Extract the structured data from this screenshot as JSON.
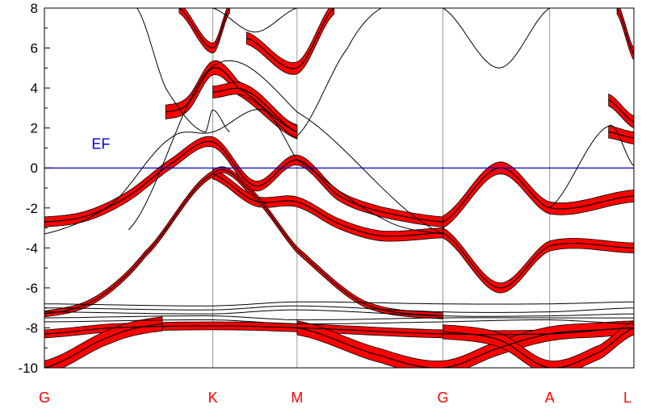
{
  "chart_data": {
    "type": "line",
    "title": "",
    "xlabel": "",
    "ylabel": "",
    "ylim": [
      -10,
      8
    ],
    "yticks": [
      8,
      6,
      4,
      2,
      0,
      -2,
      -4,
      -6,
      -8,
      -10
    ],
    "grid": "vertical lines at high-symmetry points",
    "legend": "none",
    "x_high_symmetry": [
      {
        "label": "G",
        "x": 0.0
      },
      {
        "label": "K",
        "x": 1.0
      },
      {
        "label": "M",
        "x": 1.5
      },
      {
        "label": "G",
        "x": 2.366
      },
      {
        "label": "A",
        "x": 3.0
      },
      {
        "label": "L",
        "x": 3.5
      }
    ],
    "fermi_level": {
      "label": "EF",
      "value": 0,
      "label_x": 0.28,
      "label_y": 1.2
    },
    "colors": {
      "band": "#000000",
      "fat_band": "#ff0000",
      "fermi": "#0000cc",
      "grid": "#999999"
    },
    "series": [
      {
        "fat": 0.25,
        "x": [
          0,
          0.25,
          0.5,
          0.75,
          1.0,
          1.25,
          1.5,
          1.75,
          2.0,
          2.366
        ],
        "y": [
          -2.7,
          -2.4,
          -1.4,
          0.2,
          1.3,
          -0.9,
          0.4,
          -1.4,
          -2.2,
          -2.7
        ]
      },
      {
        "fat": 0.25,
        "x": [
          1.0,
          1.25,
          1.5,
          1.75,
          2.0,
          2.366
        ],
        "y": [
          -0.3,
          -1.65,
          -1.7,
          -2.8,
          -3.4,
          -3.25
        ]
      },
      {
        "fat": 0.15,
        "x": [
          0,
          0.3,
          0.6,
          1.0,
          1.2,
          1.5,
          1.9,
          2.366
        ],
        "y": [
          -7.3,
          -6.6,
          -4.3,
          -0.3,
          -1.0,
          -4.1,
          -6.8,
          -7.4
        ]
      },
      {
        "fat": 0.0,
        "x": [
          0,
          0.4,
          0.75,
          1.0,
          1.3,
          1.5,
          2.0,
          2.366
        ],
        "y": [
          -3.3,
          -1.8,
          1.5,
          1.8,
          2.9,
          0.4,
          -2.5,
          -3.3
        ]
      },
      {
        "fat": 0.0,
        "x": [
          0.55,
          0.72,
          0.95,
          1.0,
          1.1
        ],
        "y": [
          8.0,
          4.0,
          1.8,
          2.9,
          1.8
        ]
      },
      {
        "fat": 0.35,
        "x": [
          0.72,
          0.85,
          1.0,
          1.15,
          1.5
        ],
        "y": [
          2.8,
          3.2,
          5.0,
          4.0,
          1.8
        ]
      },
      {
        "fat": 0.3,
        "x": [
          1.0,
          1.2,
          1.5
        ],
        "y": [
          3.8,
          3.85,
          1.8
        ]
      },
      {
        "fat": 0.3,
        "x": [
          1.2,
          1.5,
          1.72
        ],
        "y": [
          6.5,
          5.0,
          8.0
        ]
      },
      {
        "fat": 0.25,
        "x": [
          0.8,
          1.0,
          1.1
        ],
        "y": [
          8.0,
          6.0,
          8.0
        ]
      },
      {
        "fat": 0.0,
        "x": [
          0.5,
          1.0,
          1.5,
          2.366
        ],
        "y": [
          -3.1,
          5.1,
          2.8,
          -3.3
        ]
      },
      {
        "fat": 0.0,
        "x": [
          1.0,
          1.25,
          1.5
        ],
        "y": [
          8.0,
          6.8,
          8.0
        ]
      },
      {
        "fat": 0.0,
        "x": [
          1.5,
          1.8,
          2.0
        ],
        "y": [
          1.6,
          6.0,
          8.0
        ]
      },
      {
        "fat": 0.3,
        "x": [
          2.366,
          2.7,
          3.0,
          3.5
        ],
        "y": [
          -2.7,
          0.0,
          -2.0,
          -1.4
        ]
      },
      {
        "fat": 0.25,
        "x": [
          2.366,
          2.7,
          3.0,
          3.5
        ],
        "y": [
          -3.25,
          -6.0,
          -3.9,
          -4.0
        ]
      },
      {
        "fat": 0.0,
        "x": [
          2.366,
          2.7,
          3.0
        ],
        "y": [
          8.0,
          5.0,
          8.0
        ]
      },
      {
        "fat": 0.0,
        "x": [
          3.0,
          3.35,
          3.5
        ],
        "y": [
          -2.0,
          2.1,
          0.1
        ]
      },
      {
        "fat": 0.3,
        "x": [
          3.35,
          3.5
        ],
        "y": [
          1.8,
          1.5
        ]
      },
      {
        "fat": 0.3,
        "x": [
          3.35,
          3.5
        ],
        "y": [
          3.4,
          2.3
        ]
      },
      {
        "fat": 0.3,
        "x": [
          3.4,
          3.5
        ],
        "y": [
          8.0,
          5.7
        ]
      },
      {
        "fat": 0.0,
        "x": [
          0,
          1.0,
          1.5,
          2.366,
          3.0,
          3.5
        ],
        "y": [
          -6.8,
          -6.9,
          -6.7,
          -6.8,
          -6.8,
          -6.7
        ]
      },
      {
        "fat": 0.0,
        "x": [
          0,
          1.0,
          1.5,
          2.366,
          3.0,
          3.5
        ],
        "y": [
          -7.0,
          -7.1,
          -6.9,
          -7.2,
          -7.2,
          -7.0
        ]
      },
      {
        "fat": 0.0,
        "x": [
          0,
          1.0,
          1.5,
          2.366,
          3.0,
          3.5
        ],
        "y": [
          -7.2,
          -7.3,
          -7.1,
          -7.4,
          -7.4,
          -7.3
        ]
      },
      {
        "fat": 0.0,
        "x": [
          0,
          1.0,
          1.5,
          2.366,
          3.0,
          3.5
        ],
        "y": [
          -7.5,
          -7.4,
          -7.6,
          -7.5,
          -7.5,
          -7.5
        ]
      },
      {
        "fat": 0.0,
        "x": [
          0,
          1.0,
          1.5,
          2.366,
          3.0,
          3.5
        ],
        "y": [
          -7.7,
          -7.6,
          -7.8,
          -7.7,
          -7.6,
          -7.8
        ]
      },
      {
        "fat": 0.2,
        "x": [
          0,
          0.4,
          1.0,
          1.5,
          2.366,
          3.0,
          3.5
        ],
        "y": [
          -8.3,
          -8.0,
          -7.9,
          -8.0,
          -8.3,
          -8.3,
          -8.0
        ]
      },
      {
        "fat": 0.35,
        "x": [
          0,
          0.4,
          0.7
        ],
        "y": [
          -10.0,
          -8.4,
          -7.8
        ]
      },
      {
        "fat": 0.35,
        "x": [
          1.5,
          2.0,
          2.366,
          2.7,
          3.0,
          3.3,
          3.5
        ],
        "y": [
          -8.0,
          -9.4,
          -10.0,
          -9.0,
          -8.3,
          -8.1,
          -8.0
        ]
      },
      {
        "fat": 0.35,
        "x": [
          2.366,
          2.7,
          3.0,
          3.3,
          3.5
        ],
        "y": [
          -8.2,
          -8.6,
          -10.0,
          -9.2,
          -8.0
        ]
      }
    ]
  },
  "plot_labels": {
    "ef": "EF",
    "ytick_labels": [
      "8",
      "6",
      "4",
      "2",
      "0",
      "-2",
      "-4",
      "-6",
      "-8",
      "-10"
    ],
    "xtick_labels": [
      "G",
      "K",
      "M",
      "G",
      "A",
      "L"
    ]
  }
}
